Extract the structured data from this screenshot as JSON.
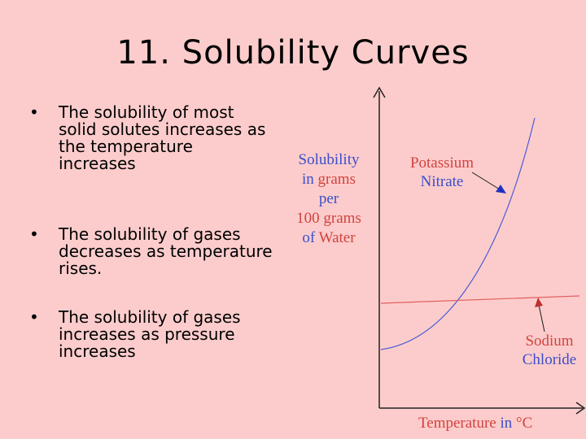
{
  "slide": {
    "title": "11. Solubility Curves",
    "bullets": [
      {
        "marker": "•",
        "text": "The solubility of most solid solutes increases as the temperature increases"
      },
      {
        "marker": "•",
        "text": "The solubility of gases decreases as temperature rises."
      },
      {
        "marker": "•",
        "text": "The solubility of gases increases as pressure increases"
      }
    ]
  },
  "diagram": {
    "y_label": {
      "part1": "Solubility",
      "part2": "in",
      "part3": "grams",
      "part4": "per",
      "part5": "100 grams",
      "part6": "of",
      "part7": "Water"
    },
    "x_label": {
      "part1": "Temperature",
      "part2": "in",
      "part3": "°C"
    },
    "curves": [
      {
        "name_line1": "Potassium",
        "name_line2": "Nitrate",
        "trend": "increases",
        "color": "#4a5cd6"
      },
      {
        "name_line1": "Sodium",
        "name_line2": "Chloride",
        "trend": "nearly flat, slight decrease",
        "color": "#e06060"
      }
    ],
    "colors": {
      "axis": "#222222",
      "label_blue": "#3a4fc8",
      "label_red": "#d2433e",
      "background": "#fccccc"
    }
  }
}
